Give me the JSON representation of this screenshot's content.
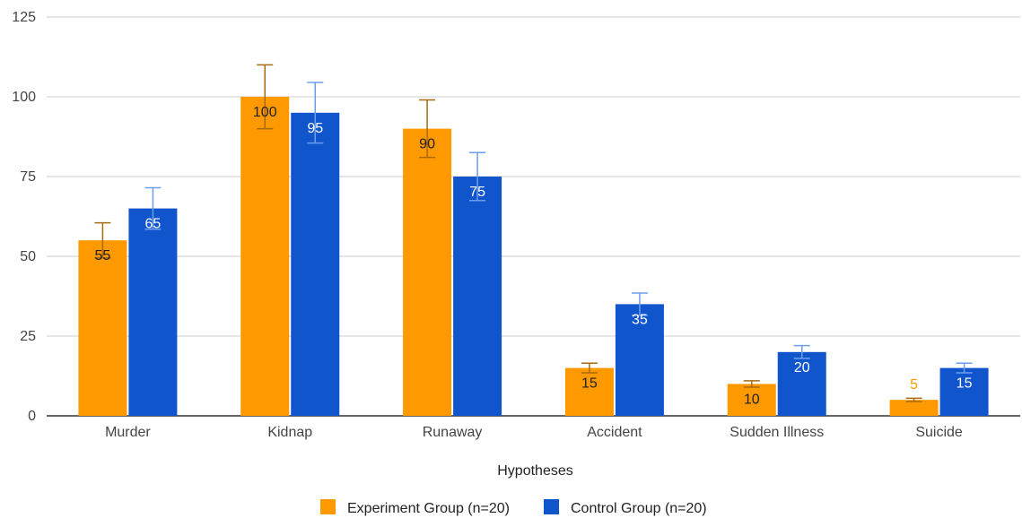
{
  "chart_data": {
    "type": "bar",
    "title": "",
    "xlabel": "Hypotheses",
    "ylabel": "",
    "ylim": [
      0,
      125
    ],
    "yticks": [
      0,
      25,
      50,
      75,
      100,
      125
    ],
    "grid": "horizontal",
    "legend_position": "bottom",
    "categories": [
      "Murder",
      "Kidnap",
      "Runaway",
      "Accident",
      "Sudden Illness",
      "Suicide"
    ],
    "series": [
      {
        "name": "Experiment Group (n=20)",
        "color": "#FF9900",
        "error_color": "#A86A10",
        "values": [
          55,
          100,
          90,
          15,
          10,
          5
        ],
        "error_upper": [
          60.5,
          110,
          99,
          16.5,
          11,
          5.5
        ],
        "error_lower": [
          49.5,
          90,
          81,
          13.5,
          9,
          4.5
        ]
      },
      {
        "name": "Control Group (n=20)",
        "color": "#1155CC",
        "error_color": "#6D9EEB",
        "values": [
          65,
          95,
          75,
          35,
          20,
          15
        ],
        "error_upper": [
          71.5,
          104.5,
          82.5,
          38.5,
          22,
          16.5
        ],
        "error_lower": [
          58.5,
          85.5,
          67.5,
          31.5,
          18,
          13.5
        ]
      }
    ]
  }
}
